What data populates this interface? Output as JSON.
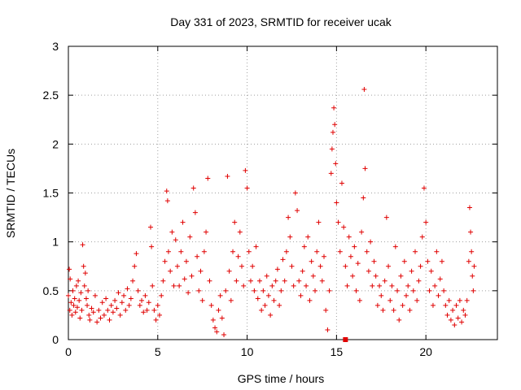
{
  "chart_data": {
    "type": "scatter",
    "title": "Day 331 of 2023, SRMTID for receiver ucak",
    "xlabel": "GPS time / hours",
    "ylabel": "SRMTID / TECUs",
    "xlim": [
      0,
      24
    ],
    "ylim": [
      0,
      3
    ],
    "xticks": [
      {
        "value": 0,
        "label": "0"
      },
      {
        "value": 5,
        "label": "5"
      },
      {
        "value": 10,
        "label": "10"
      },
      {
        "value": 15,
        "label": "15"
      },
      {
        "value": 20,
        "label": "20"
      }
    ],
    "yticks": [
      {
        "value": 0,
        "label": "0"
      },
      {
        "value": 0.5,
        "label": "0.5"
      },
      {
        "value": 1,
        "label": "1"
      },
      {
        "value": 1.5,
        "label": "1.5"
      },
      {
        "value": 2,
        "label": "2"
      },
      {
        "value": 2.5,
        "label": "2.5"
      },
      {
        "value": 3,
        "label": "3"
      }
    ],
    "grid": true,
    "marker": "+",
    "marker_color": "#e00000",
    "series": [
      {
        "name": "SRMTID",
        "points": [
          [
            0.0,
            0.45
          ],
          [
            0.05,
            0.72
          ],
          [
            0.08,
            0.3
          ],
          [
            0.1,
            0.62
          ],
          [
            0.15,
            0.38
          ],
          [
            0.2,
            0.25
          ],
          [
            0.25,
            0.5
          ],
          [
            0.3,
            0.35
          ],
          [
            0.35,
            0.42
          ],
          [
            0.4,
            0.28
          ],
          [
            0.45,
            0.55
          ],
          [
            0.5,
            0.33
          ],
          [
            0.55,
            0.6
          ],
          [
            0.6,
            0.4
          ],
          [
            0.65,
            0.22
          ],
          [
            0.7,
            0.48
          ],
          [
            0.75,
            0.3
          ],
          [
            0.8,
            0.97
          ],
          [
            0.85,
            0.75
          ],
          [
            0.9,
            0.55
          ],
          [
            0.95,
            0.68
          ],
          [
            1.0,
            0.42
          ],
          [
            1.05,
            0.35
          ],
          [
            1.1,
            0.5
          ],
          [
            1.15,
            0.25
          ],
          [
            1.2,
            0.2
          ],
          [
            1.3,
            0.32
          ],
          [
            1.4,
            0.28
          ],
          [
            1.5,
            0.45
          ],
          [
            1.6,
            0.18
          ],
          [
            1.7,
            0.3
          ],
          [
            1.8,
            0.22
          ],
          [
            1.9,
            0.38
          ],
          [
            2.0,
            0.25
          ],
          [
            2.1,
            0.42
          ],
          [
            2.2,
            0.3
          ],
          [
            2.3,
            0.2
          ],
          [
            2.4,
            0.35
          ],
          [
            2.5,
            0.28
          ],
          [
            2.6,
            0.4
          ],
          [
            2.7,
            0.32
          ],
          [
            2.8,
            0.48
          ],
          [
            2.9,
            0.25
          ],
          [
            3.0,
            0.38
          ],
          [
            3.1,
            0.45
          ],
          [
            3.2,
            0.3
          ],
          [
            3.3,
            0.52
          ],
          [
            3.4,
            0.35
          ],
          [
            3.5,
            0.42
          ],
          [
            3.6,
            0.6
          ],
          [
            3.7,
            0.75
          ],
          [
            3.8,
            0.88
          ],
          [
            3.9,
            0.5
          ],
          [
            4.0,
            0.35
          ],
          [
            4.1,
            0.4
          ],
          [
            4.2,
            0.28
          ],
          [
            4.3,
            0.45
          ],
          [
            4.4,
            0.3
          ],
          [
            4.5,
            0.38
          ],
          [
            4.6,
            1.15
          ],
          [
            4.65,
            0.95
          ],
          [
            4.7,
            0.55
          ],
          [
            4.8,
            0.3
          ],
          [
            4.9,
            0.2
          ],
          [
            5.0,
            0.35
          ],
          [
            5.1,
            0.25
          ],
          [
            5.2,
            0.45
          ],
          [
            5.3,
            0.6
          ],
          [
            5.4,
            0.8
          ],
          [
            5.5,
            1.52
          ],
          [
            5.55,
            1.42
          ],
          [
            5.6,
            0.9
          ],
          [
            5.7,
            0.7
          ],
          [
            5.8,
            1.1
          ],
          [
            5.9,
            0.55
          ],
          [
            6.0,
            1.02
          ],
          [
            6.1,
            0.75
          ],
          [
            6.2,
            0.55
          ],
          [
            6.3,
            0.9
          ],
          [
            6.4,
            1.2
          ],
          [
            6.5,
            0.62
          ],
          [
            6.6,
            0.8
          ],
          [
            6.7,
            0.48
          ],
          [
            6.8,
            1.05
          ],
          [
            6.9,
            0.65
          ],
          [
            7.0,
            1.55
          ],
          [
            7.1,
            1.3
          ],
          [
            7.2,
            0.85
          ],
          [
            7.3,
            0.5
          ],
          [
            7.4,
            0.7
          ],
          [
            7.5,
            0.4
          ],
          [
            7.6,
            0.9
          ],
          [
            7.7,
            1.1
          ],
          [
            7.8,
            1.65
          ],
          [
            7.9,
            0.6
          ],
          [
            8.0,
            0.35
          ],
          [
            8.1,
            0.2
          ],
          [
            8.2,
            0.12
          ],
          [
            8.3,
            0.08
          ],
          [
            8.4,
            0.3
          ],
          [
            8.5,
            0.45
          ],
          [
            8.6,
            0.22
          ],
          [
            8.7,
            0.05
          ],
          [
            8.8,
            0.5
          ],
          [
            8.9,
            1.67
          ],
          [
            9.0,
            0.7
          ],
          [
            9.1,
            0.4
          ],
          [
            9.2,
            0.9
          ],
          [
            9.3,
            1.2
          ],
          [
            9.4,
            0.6
          ],
          [
            9.5,
            0.85
          ],
          [
            9.6,
            1.1
          ],
          [
            9.7,
            0.75
          ],
          [
            9.8,
            0.55
          ],
          [
            9.9,
            1.73
          ],
          [
            10.0,
            1.55
          ],
          [
            10.1,
            0.9
          ],
          [
            10.2,
            0.6
          ],
          [
            10.3,
            0.75
          ],
          [
            10.4,
            0.5
          ],
          [
            10.5,
            0.95
          ],
          [
            10.6,
            0.42
          ],
          [
            10.7,
            0.6
          ],
          [
            10.8,
            0.3
          ],
          [
            10.9,
            0.5
          ],
          [
            11.0,
            0.35
          ],
          [
            11.1,
            0.65
          ],
          [
            11.2,
            0.45
          ],
          [
            11.3,
            0.25
          ],
          [
            11.4,
            0.55
          ],
          [
            11.5,
            0.4
          ],
          [
            11.6,
            0.6
          ],
          [
            11.7,
            0.72
          ],
          [
            11.8,
            0.35
          ],
          [
            11.9,
            0.5
          ],
          [
            12.0,
            0.82
          ],
          [
            12.1,
            0.6
          ],
          [
            12.2,
            0.9
          ],
          [
            12.3,
            1.25
          ],
          [
            12.4,
            1.05
          ],
          [
            12.5,
            0.75
          ],
          [
            12.6,
            0.55
          ],
          [
            12.7,
            1.5
          ],
          [
            12.8,
            1.32
          ],
          [
            12.9,
            0.6
          ],
          [
            13.0,
            0.45
          ],
          [
            13.1,
            0.7
          ],
          [
            13.2,
            0.95
          ],
          [
            13.3,
            0.55
          ],
          [
            13.4,
            1.05
          ],
          [
            13.5,
            0.4
          ],
          [
            13.6,
            0.8
          ],
          [
            13.7,
            0.65
          ],
          [
            13.8,
            0.5
          ],
          [
            13.9,
            0.9
          ],
          [
            14.0,
            1.2
          ],
          [
            14.1,
            0.75
          ],
          [
            14.2,
            0.6
          ],
          [
            14.3,
            0.85
          ],
          [
            14.4,
            0.3
          ],
          [
            14.5,
            0.1
          ],
          [
            14.6,
            0.5
          ],
          [
            14.7,
            1.7
          ],
          [
            14.75,
            1.95
          ],
          [
            14.8,
            2.12
          ],
          [
            14.85,
            2.37
          ],
          [
            14.9,
            2.2
          ],
          [
            14.95,
            1.8
          ],
          [
            15.0,
            1.4
          ],
          [
            15.1,
            1.2
          ],
          [
            15.2,
            0.9
          ],
          [
            15.3,
            1.6
          ],
          [
            15.4,
            1.15
          ],
          [
            15.5,
            0.75
          ],
          [
            15.6,
            0.55
          ],
          [
            15.7,
            1.05
          ],
          [
            15.8,
            0.85
          ],
          [
            15.9,
            0.65
          ],
          [
            16.0,
            0.95
          ],
          [
            16.1,
            0.5
          ],
          [
            16.2,
            0.78
          ],
          [
            16.3,
            0.4
          ],
          [
            16.4,
            1.1
          ],
          [
            16.5,
            1.45
          ],
          [
            16.55,
            2.56
          ],
          [
            16.6,
            1.75
          ],
          [
            16.7,
            0.9
          ],
          [
            16.8,
            0.7
          ],
          [
            16.9,
            1.0
          ],
          [
            17.0,
            0.55
          ],
          [
            17.1,
            0.8
          ],
          [
            17.2,
            0.65
          ],
          [
            17.3,
            0.35
          ],
          [
            17.4,
            0.55
          ],
          [
            17.5,
            0.45
          ],
          [
            17.6,
            0.3
          ],
          [
            17.7,
            0.6
          ],
          [
            17.8,
            1.25
          ],
          [
            17.9,
            0.75
          ],
          [
            18.0,
            0.4
          ],
          [
            18.1,
            0.55
          ],
          [
            18.2,
            0.3
          ],
          [
            18.3,
            0.95
          ],
          [
            18.4,
            0.5
          ],
          [
            18.5,
            0.2
          ],
          [
            18.6,
            0.65
          ],
          [
            18.7,
            0.35
          ],
          [
            18.8,
            0.8
          ],
          [
            18.9,
            0.45
          ],
          [
            19.0,
            0.55
          ],
          [
            19.1,
            0.3
          ],
          [
            19.2,
            0.7
          ],
          [
            19.3,
            0.5
          ],
          [
            19.4,
            0.9
          ],
          [
            19.5,
            0.4
          ],
          [
            19.6,
            0.6
          ],
          [
            19.7,
            0.75
          ],
          [
            19.8,
            1.05
          ],
          [
            19.9,
            1.55
          ],
          [
            20.0,
            1.2
          ],
          [
            20.1,
            0.8
          ],
          [
            20.2,
            0.5
          ],
          [
            20.3,
            0.7
          ],
          [
            20.4,
            0.35
          ],
          [
            20.5,
            0.55
          ],
          [
            20.6,
            0.9
          ],
          [
            20.7,
            0.45
          ],
          [
            20.8,
            0.62
          ],
          [
            20.9,
            0.8
          ],
          [
            21.0,
            0.5
          ],
          [
            21.1,
            0.35
          ],
          [
            21.2,
            0.25
          ],
          [
            21.3,
            0.4
          ],
          [
            21.4,
            0.2
          ],
          [
            21.5,
            0.3
          ],
          [
            21.6,
            0.15
          ],
          [
            21.7,
            0.35
          ],
          [
            21.8,
            0.22
          ],
          [
            21.9,
            0.4
          ],
          [
            22.0,
            0.18
          ],
          [
            22.1,
            0.3
          ],
          [
            22.2,
            0.25
          ],
          [
            22.3,
            0.4
          ],
          [
            22.4,
            0.8
          ],
          [
            22.45,
            1.35
          ],
          [
            22.5,
            1.1
          ],
          [
            22.55,
            0.9
          ],
          [
            22.6,
            0.65
          ],
          [
            22.65,
            0.5
          ],
          [
            22.7,
            0.75
          ]
        ]
      }
    ],
    "highlight_marker": {
      "x": 15.5,
      "y": 0,
      "shape": "filled-square"
    }
  }
}
